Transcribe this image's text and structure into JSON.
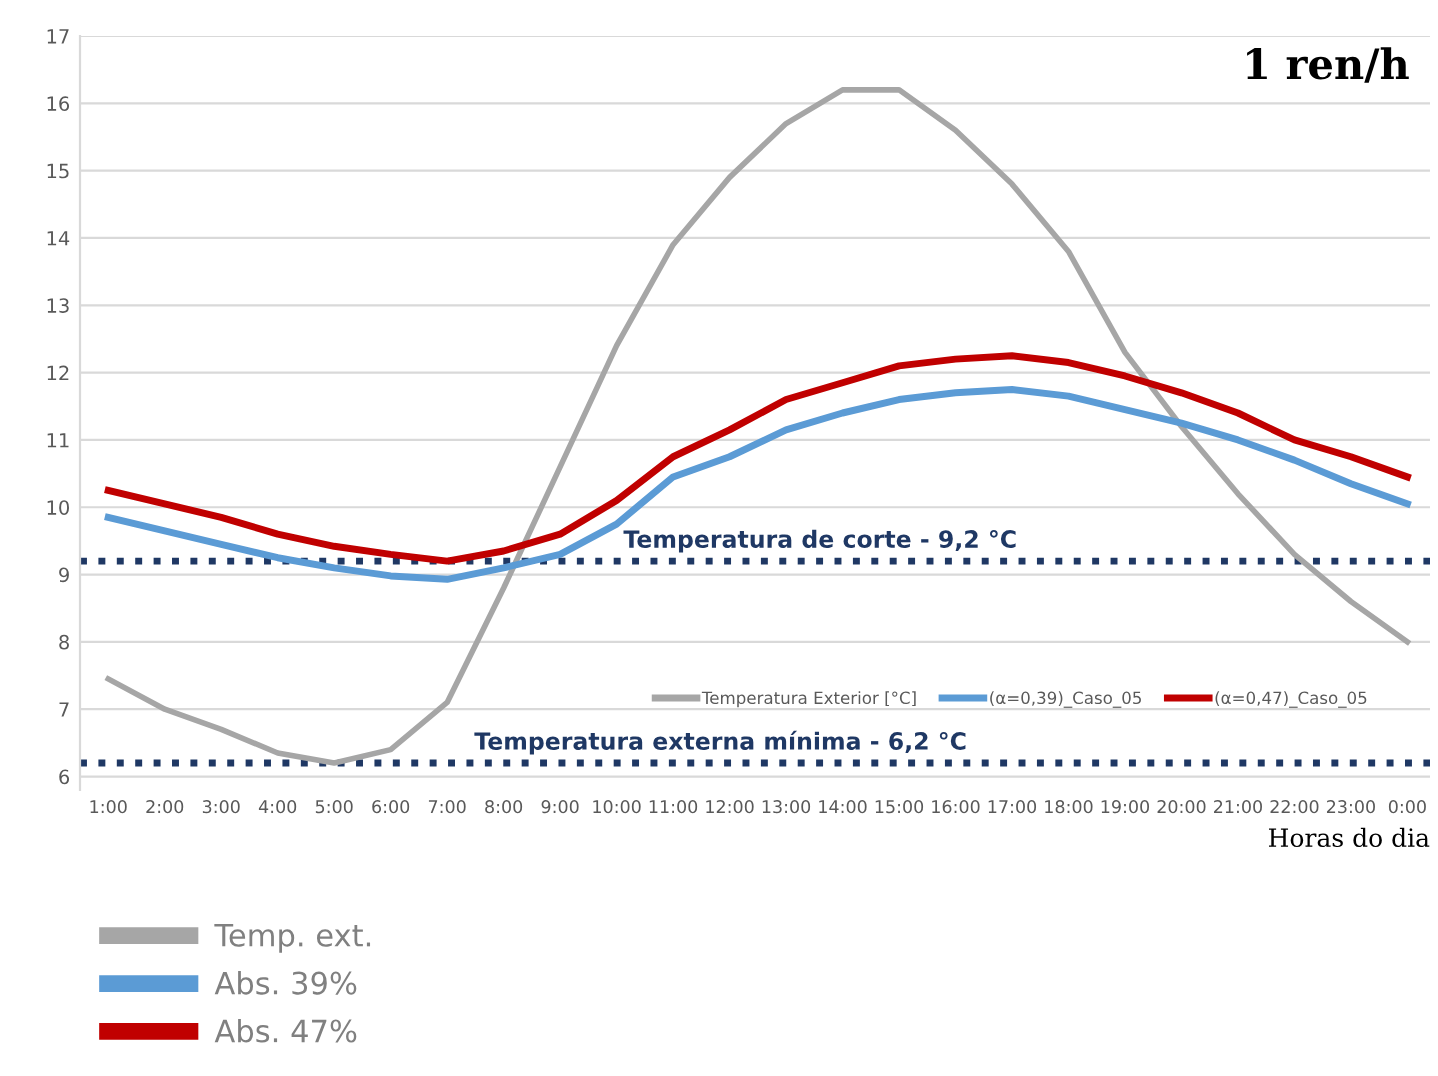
{
  "chart_data": {
    "type": "line",
    "title": "1 ren/h",
    "xlabel": "Horas do dia",
    "categories": [
      "1:00",
      "2:00",
      "3:00",
      "4:00",
      "5:00",
      "6:00",
      "7:00",
      "8:00",
      "9:00",
      "10:00",
      "11:00",
      "12:00",
      "13:00",
      "14:00",
      "15:00",
      "16:00",
      "17:00",
      "18:00",
      "19:00",
      "20:00",
      "21:00",
      "22:00",
      "23:00",
      "0:00"
    ],
    "series": [
      {
        "name": "Temp. ext.",
        "color": "#a6a6a6",
        "values": [
          7.45,
          7.0,
          6.7,
          6.35,
          6.2,
          6.4,
          7.1,
          8.8,
          10.6,
          12.4,
          13.9,
          14.9,
          15.7,
          16.2,
          16.2,
          15.6,
          14.8,
          13.8,
          12.3,
          11.2,
          10.2,
          9.3,
          8.6,
          8.0
        ]
      },
      {
        "name": "Abs. 39%",
        "color": "#5b9bd5",
        "values": [
          9.85,
          9.65,
          9.45,
          9.25,
          9.1,
          8.98,
          8.93,
          9.1,
          9.3,
          9.75,
          10.45,
          10.75,
          11.15,
          11.4,
          11.6,
          11.7,
          11.75,
          11.65,
          11.45,
          11.25,
          11.0,
          10.7,
          10.35,
          10.05
        ]
      },
      {
        "name": "Abs. 47%",
        "color": "#c00000",
        "values": [
          10.25,
          10.05,
          9.85,
          9.6,
          9.42,
          9.3,
          9.2,
          9.35,
          9.6,
          10.1,
          10.75,
          11.15,
          11.6,
          11.85,
          12.1,
          12.2,
          12.25,
          12.15,
          11.95,
          11.7,
          11.4,
          11.0,
          10.75,
          10.45
        ]
      }
    ],
    "ylim": [
      5.8,
      17
    ],
    "yticks": [
      6,
      7,
      8,
      9,
      10,
      11,
      12,
      13,
      14,
      15,
      16,
      17
    ],
    "ref_lines": [
      {
        "axis": "y",
        "value": 9.2,
        "label": "Temperatura de corte - 9,2 °C",
        "color": "#1f3864",
        "line_style": "dotted"
      },
      {
        "axis": "y",
        "value": 6.2,
        "label": "Temperatura externa mínima - 6,2 °C",
        "color": "#1f3864",
        "line_style": "dotted"
      }
    ],
    "annotations": [
      "Temperatura Exterior [°C]",
      "(α=0,39)_Caso_05",
      "(α=0,47)_Caso_05"
    ],
    "grid": "y",
    "legend": "bottom left",
    "marker": "none",
    "line_style": "solid"
  }
}
